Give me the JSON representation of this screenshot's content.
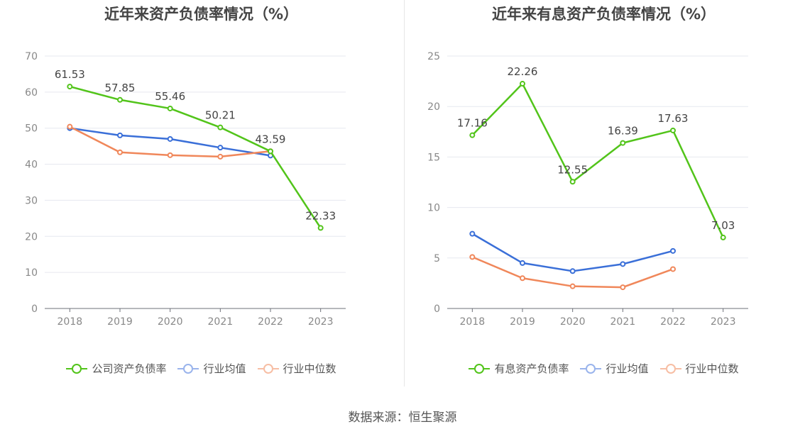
{
  "source": "数据来源：恒生聚源",
  "chart_data": [
    {
      "type": "line",
      "title": "近年来资产负债率情况（%）",
      "categories": [
        "2018",
        "2019",
        "2020",
        "2021",
        "2022",
        "2023"
      ],
      "ylim": [
        0,
        70
      ],
      "yticks": [
        "0",
        "10",
        "20",
        "30",
        "40",
        "50",
        "60",
        "70"
      ],
      "grid": true,
      "legend_position": "bottom",
      "series": [
        {
          "name": "公司资产负债率",
          "color": "#52c41a",
          "values": [
            61.53,
            57.85,
            55.46,
            50.21,
            43.59,
            22.33
          ],
          "labels": [
            "61.53",
            "57.85",
            "55.46",
            "50.21",
            "43.59",
            "22.33"
          ]
        },
        {
          "name": "行业均值",
          "color": "#3a6fd8",
          "values": [
            50.0,
            48.0,
            47.0,
            44.6,
            42.4,
            null
          ]
        },
        {
          "name": "行业中位数",
          "color": "#f0875a",
          "values": [
            50.4,
            43.3,
            42.5,
            42.1,
            43.6,
            null
          ]
        }
      ]
    },
    {
      "type": "line",
      "title": "近年来有息资产负债率情况（%）",
      "categories": [
        "2018",
        "2019",
        "2020",
        "2021",
        "2022",
        "2023"
      ],
      "ylim": [
        0,
        25
      ],
      "yticks": [
        "0",
        "5",
        "10",
        "15",
        "20",
        "25"
      ],
      "grid": true,
      "legend_position": "bottom",
      "series": [
        {
          "name": "有息资产负债率",
          "color": "#52c41a",
          "values": [
            17.16,
            22.26,
            12.55,
            16.39,
            17.63,
            7.03
          ],
          "labels": [
            "17.16",
            "22.26",
            "12.55",
            "16.39",
            "17.63",
            "7.03"
          ]
        },
        {
          "name": "行业均值",
          "color": "#3a6fd8",
          "values": [
            7.4,
            4.5,
            3.7,
            4.4,
            5.7,
            null
          ]
        },
        {
          "name": "行业中位数",
          "color": "#f0875a",
          "values": [
            5.1,
            3.0,
            2.2,
            2.1,
            3.9,
            null
          ]
        }
      ]
    }
  ]
}
